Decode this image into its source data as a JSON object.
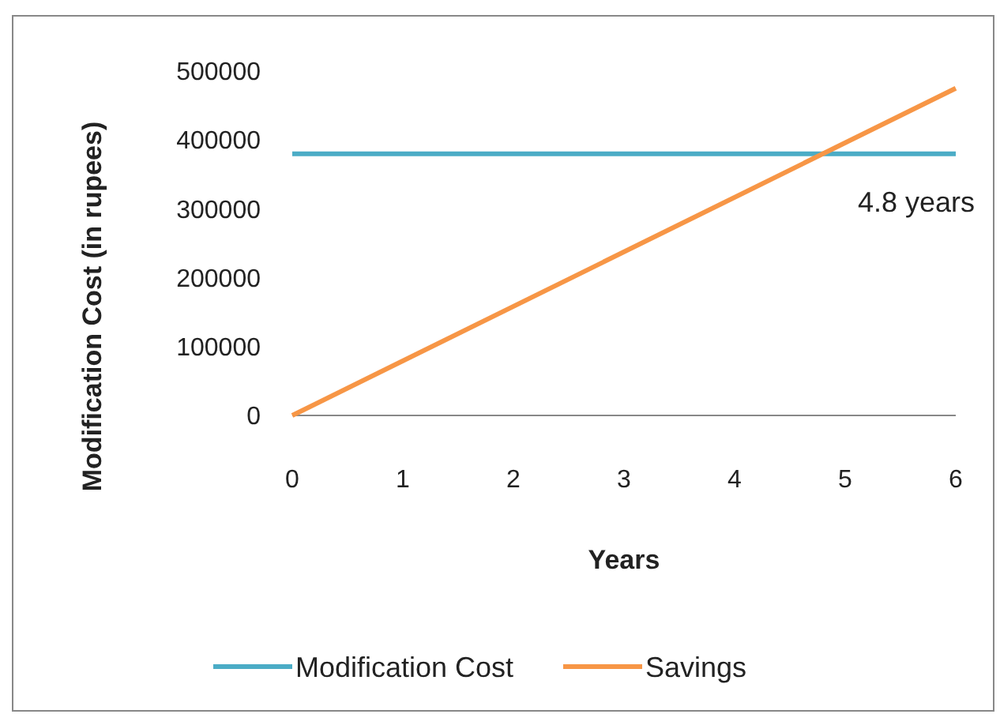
{
  "chart_data": {
    "type": "line",
    "xlabel": "Years",
    "ylabel": "Modification Cost (in rupees)",
    "x": [
      0,
      6
    ],
    "series": [
      {
        "name": "Modification Cost",
        "color": "#4bacc6",
        "values": [
          380000,
          380000
        ]
      },
      {
        "name": "Savings",
        "color": "#f79646",
        "values": [
          0,
          475000
        ]
      }
    ],
    "xlim": [
      0,
      6
    ],
    "xticks": [
      0,
      1,
      2,
      3,
      4,
      5,
      6
    ],
    "ylim": [
      0,
      500000
    ],
    "yticks": [
      0,
      100000,
      200000,
      300000,
      400000,
      500000
    ],
    "annotations": [
      "4.8 years"
    ],
    "legend": "bottom",
    "grid": false,
    "marker": "none",
    "line_style": "solid"
  }
}
